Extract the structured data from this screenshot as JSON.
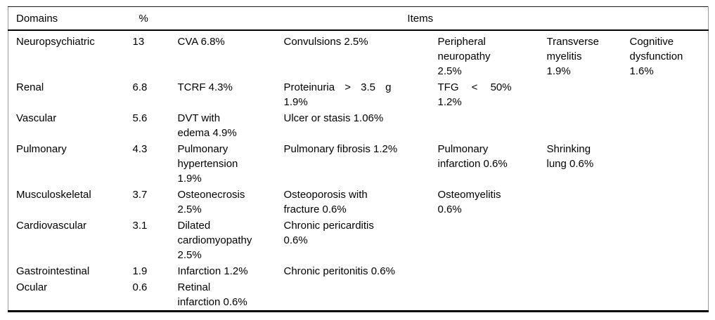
{
  "header": {
    "domains": "Domains",
    "pct": "%",
    "items": "Items"
  },
  "rows": [
    {
      "domain": "Neuropsychiatric",
      "pct": "13",
      "items": [
        "CVA 6.8%",
        "Convulsions 2.5%",
        "Peripheral\nneuropathy\n2.5%",
        "Transverse\nmyelitis\n1.9%",
        "Cognitive\ndysfunction\n1.6%"
      ]
    },
    {
      "domain": "Renal",
      "pct": "6.8",
      "items": [
        "TCRF 4.3%",
        "Proteinuria > 3.5 g\n1.9%",
        "TFG < 50%\n1.2%"
      ]
    },
    {
      "domain": "Vascular",
      "pct": "5.6",
      "items": [
        "DVT with\nedema 4.9%",
        "Ulcer or stasis 1.06%"
      ]
    },
    {
      "domain": "Pulmonary",
      "pct": "4.3",
      "items": [
        "Pulmonary\nhypertension\n1.9%",
        "Pulmonary fibrosis 1.2%",
        "Pulmonary\ninfarction 0.6%",
        "Shrinking\nlung 0.6%"
      ]
    },
    {
      "domain": "Musculoskeletal",
      "pct": "3.7",
      "items": [
        "Osteonecrosis\n2.5%",
        "Osteoporosis with\nfracture 0.6%",
        "Osteomyelitis\n0.6%"
      ]
    },
    {
      "domain": "Cardiovascular",
      "pct": "3.1",
      "items": [
        "Dilated\ncardiomyopathy\n2.5%",
        "Chronic pericarditis\n0.6%"
      ]
    },
    {
      "domain": "Gastrointestinal",
      "pct": "1.9",
      "items": [
        "Infarction 1.2%",
        "Chronic peritonitis 0.6%"
      ]
    },
    {
      "domain": "Ocular",
      "pct": "0.6",
      "items": [
        "Retinal\ninfarction 0.6%"
      ]
    }
  ]
}
